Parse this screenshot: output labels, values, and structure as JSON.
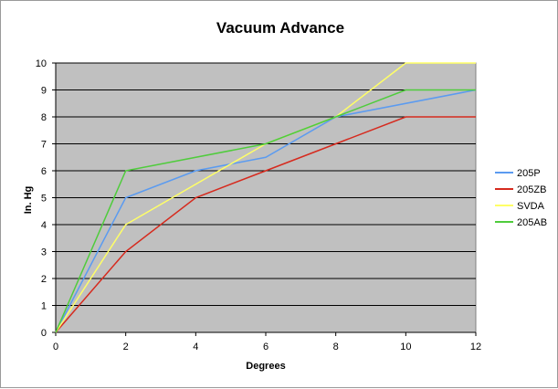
{
  "chart_data": {
    "type": "line",
    "title": "Vacuum Advance",
    "xlabel": "Degrees",
    "ylabel": "In. Hg",
    "xlim": [
      0,
      12
    ],
    "ylim": [
      0,
      10
    ],
    "xticks": [
      "0",
      "2",
      "4",
      "6",
      "8",
      "10",
      "12"
    ],
    "yticks": [
      "0",
      "1",
      "2",
      "3",
      "4",
      "5",
      "6",
      "7",
      "8",
      "9",
      "10"
    ],
    "grid": "horizontal",
    "plot_background": "#c0c0c0",
    "legend_position": "right",
    "series": [
      {
        "name": "205P",
        "color": "#5b9bf0",
        "points": [
          [
            0,
            0
          ],
          [
            2,
            5
          ],
          [
            4,
            6
          ],
          [
            6,
            6.5
          ],
          [
            8,
            8
          ],
          [
            12,
            9
          ]
        ]
      },
      {
        "name": "205ZB",
        "color": "#d62a1e",
        "points": [
          [
            0,
            0
          ],
          [
            2,
            3
          ],
          [
            4,
            5
          ],
          [
            6,
            6
          ],
          [
            8,
            7
          ],
          [
            10,
            8
          ],
          [
            12,
            8
          ]
        ]
      },
      {
        "name": "SVDA",
        "color": "#ffff66",
        "points": [
          [
            0,
            0
          ],
          [
            2,
            4
          ],
          [
            6,
            7
          ],
          [
            8,
            8
          ],
          [
            10,
            10
          ],
          [
            12,
            10
          ]
        ]
      },
      {
        "name": "205AB",
        "color": "#4fcc3c",
        "points": [
          [
            0,
            0
          ],
          [
            2,
            6
          ],
          [
            6,
            7
          ],
          [
            8,
            8
          ],
          [
            10,
            9
          ],
          [
            12,
            9
          ]
        ]
      }
    ]
  }
}
